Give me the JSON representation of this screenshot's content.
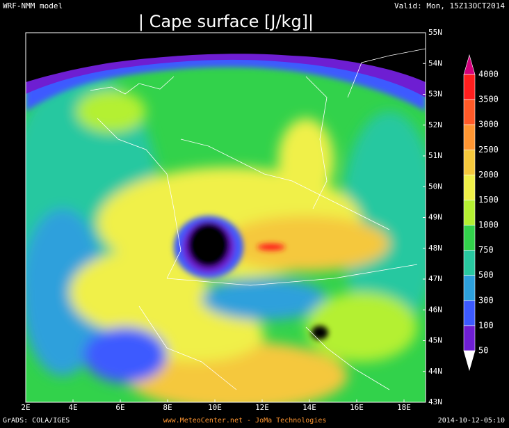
{
  "header": {
    "model": "WRF-NMM model",
    "title": "| Cape surface [J/kg]|",
    "valid": "Valid: Mon, 15Z13OCT2014"
  },
  "map": {
    "lon_labels": [
      "2E",
      "4E",
      "6E",
      "8E",
      "10E",
      "12E",
      "14E",
      "16E",
      "18E"
    ],
    "lat_labels": [
      "55N",
      "54N",
      "53N",
      "52N",
      "51N",
      "50N",
      "49N",
      "48N",
      "47N",
      "46N",
      "45N",
      "44N",
      "43N"
    ]
  },
  "colorbar": {
    "labels": [
      "4000",
      "3500",
      "3000",
      "2500",
      "2000",
      "1500",
      "1000",
      "750",
      "500",
      "300",
      "100",
      "50"
    ],
    "colors": [
      "#d4007c",
      "#ff1e1e",
      "#ff5a28",
      "#ff9632",
      "#f5c83c",
      "#f0f048",
      "#b4f032",
      "#32d24b",
      "#28c8a0",
      "#2da0dc",
      "#3c5aff",
      "#6e1ed2",
      "#ffffff"
    ]
  },
  "footer": {
    "left": "GrADS: COLA/IGES",
    "center": "www.MeteoCenter.net - JoMa Technologies",
    "right": "2014-10-12-05:10"
  }
}
